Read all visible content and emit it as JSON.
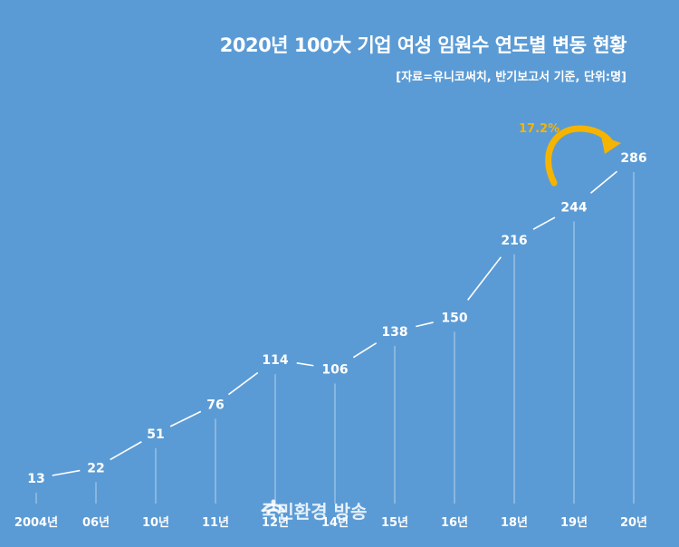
{
  "title": "2020년 100大 기업 여성 임원수 연도별 변동 현황",
  "source": "[자료=유니코써치, 반기보고서 기준, 단위:명]",
  "watermark": "국민환경 방송",
  "colors": {
    "background": "#5b9bd5",
    "line": "#ffffff",
    "highlight": "#f5b400"
  },
  "chart_data": {
    "type": "line",
    "title": "2020년 100大 기업 여성 임원수 연도별 변동 현황",
    "categories": [
      "2004년",
      "06년",
      "10년",
      "11년",
      "12년",
      "14년",
      "15년",
      "16년",
      "18년",
      "19년",
      "20년"
    ],
    "values": [
      13,
      22,
      51,
      76,
      114,
      106,
      138,
      150,
      216,
      244,
      286
    ],
    "ylim": [
      0,
      300
    ],
    "grid": false,
    "legend": "none",
    "annotation": {
      "text": "17.2%",
      "from": "19년",
      "to": "20년"
    }
  }
}
